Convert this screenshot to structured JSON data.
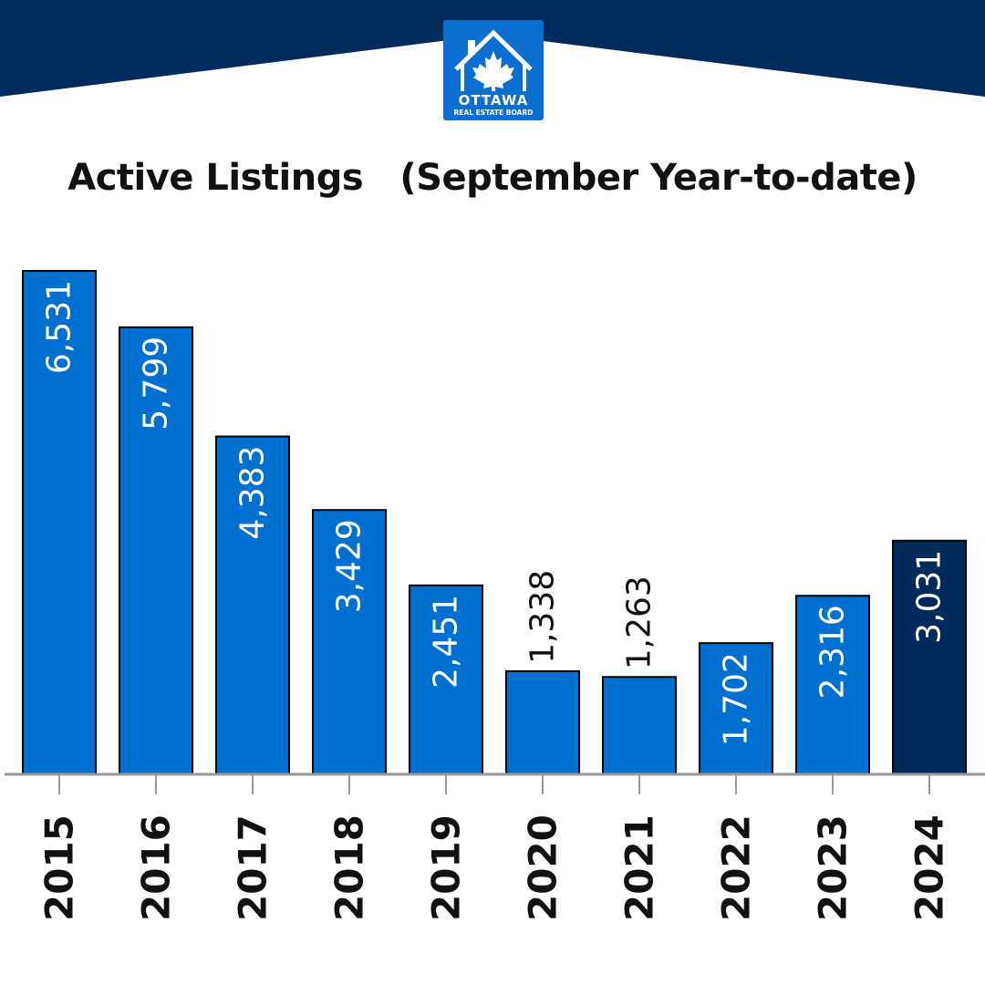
{
  "header": {
    "logo_name": "house-maple-leaf-icon",
    "logo_line1": "OTTAWA",
    "logo_line2": "REAL ESTATE BOARD"
  },
  "colors": {
    "banner": "#002b5c",
    "bar": "#0070d0",
    "bar_highlight": "#002a5c",
    "axis": "#9a9a9a",
    "label_inside": "#ffffff",
    "label_outside": "#111111"
  },
  "chart_data": {
    "type": "bar",
    "title": "Active Listings   (September Year-to-date)",
    "categories": [
      "2015",
      "2016",
      "2017",
      "2018",
      "2019",
      "2020",
      "2021",
      "2022",
      "2023",
      "2024"
    ],
    "values": [
      6531,
      5799,
      4383,
      3429,
      2451,
      1338,
      1263,
      1702,
      2316,
      3031
    ],
    "value_labels": [
      "6,531",
      "5,799",
      "4,383",
      "3,429",
      "2,451",
      "1,338",
      "1,263",
      "1,702",
      "2,316",
      "3,031"
    ],
    "label_position": [
      "inside",
      "inside",
      "inside",
      "inside",
      "inside",
      "outside",
      "outside",
      "inside",
      "inside",
      "inside"
    ],
    "highlight_index": 9,
    "xlabel": "",
    "ylabel": "",
    "ylim": [
      0,
      6600
    ],
    "grid": false,
    "legend": "none"
  }
}
